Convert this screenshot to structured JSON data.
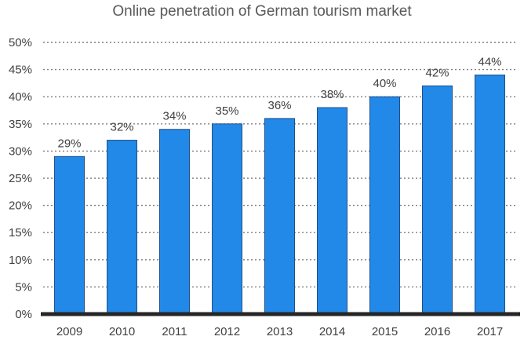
{
  "chart_data": {
    "type": "bar",
    "title": "Online penetration of German tourism market",
    "categories": [
      "2009",
      "2010",
      "2011",
      "2012",
      "2013",
      "2014",
      "2015",
      "2016",
      "2017"
    ],
    "values": [
      29,
      32,
      34,
      35,
      36,
      38,
      40,
      42,
      44
    ],
    "value_labels": [
      "29%",
      "32%",
      "34%",
      "35%",
      "36%",
      "38%",
      "40%",
      "42%",
      "44%"
    ],
    "xlabel": "",
    "ylabel": "",
    "ylim": [
      0,
      50
    ],
    "y_ticks": [
      0,
      5,
      10,
      15,
      20,
      25,
      30,
      35,
      40,
      45,
      50
    ],
    "y_tick_labels": [
      "0%",
      "5%",
      "10%",
      "15%",
      "20%",
      "25%",
      "30%",
      "35%",
      "40%",
      "45%",
      "50%"
    ],
    "grid": "horizontal dotted",
    "bar_color": "#2389e8",
    "bar_edge_color": "#1f4f8a",
    "axis_color": "#262626",
    "legend": "none"
  }
}
